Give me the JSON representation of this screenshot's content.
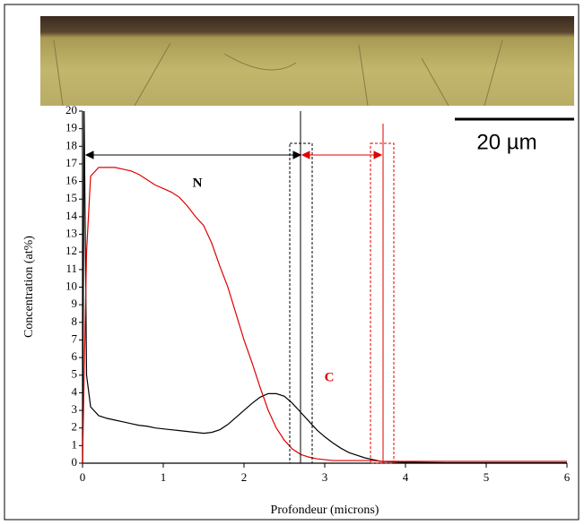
{
  "micrograph": {
    "scale_bar": "20 µm"
  },
  "chart_data": {
    "type": "line",
    "x_label": "Profondeur (microns)",
    "y_label": "Concentration (at%)",
    "xlim": [
      0,
      6
    ],
    "ylim": [
      0,
      20
    ],
    "xticks": [
      0,
      1,
      2,
      3,
      4,
      5,
      6
    ],
    "yticks": [
      0,
      1,
      2,
      3,
      4,
      5,
      6,
      7,
      8,
      9,
      10,
      11,
      12,
      13,
      14,
      15,
      16,
      17,
      18,
      19,
      20
    ],
    "x": [
      0,
      0.02,
      0.05,
      0.1,
      0.2,
      0.3,
      0.4,
      0.5,
      0.6,
      0.7,
      0.8,
      0.9,
      1.0,
      1.1,
      1.2,
      1.3,
      1.4,
      1.5,
      1.6,
      1.7,
      1.8,
      1.9,
      2.0,
      2.1,
      2.2,
      2.3,
      2.4,
      2.5,
      2.6,
      2.7,
      2.8,
      2.9,
      3.0,
      3.1,
      3.2,
      3.3,
      3.4,
      3.5,
      3.6,
      3.7,
      3.8,
      4.0,
      4.5,
      5.0,
      5.5,
      6.0
    ],
    "series": [
      {
        "name": "N",
        "color": "#000000",
        "values": [
          0,
          20,
          5,
          3.2,
          2.7,
          2.55,
          2.45,
          2.35,
          2.25,
          2.15,
          2.1,
          2.0,
          1.95,
          1.9,
          1.85,
          1.8,
          1.75,
          1.7,
          1.75,
          1.9,
          2.2,
          2.6,
          3.0,
          3.4,
          3.75,
          3.95,
          3.95,
          3.8,
          3.4,
          2.9,
          2.4,
          1.9,
          1.5,
          1.15,
          0.85,
          0.6,
          0.45,
          0.3,
          0.2,
          0.1,
          0.08,
          0.05,
          0.02,
          0.02,
          0.02,
          0.02
        ]
      },
      {
        "name": "C",
        "color": "#e00000",
        "values": [
          0,
          5,
          12,
          16.3,
          16.8,
          16.8,
          16.8,
          16.7,
          16.6,
          16.4,
          16.1,
          15.8,
          15.6,
          15.4,
          15.1,
          14.6,
          14.0,
          13.5,
          12.5,
          11.2,
          10.0,
          8.5,
          7.0,
          5.7,
          4.3,
          3.0,
          2.0,
          1.3,
          0.8,
          0.5,
          0.35,
          0.25,
          0.2,
          0.15,
          0.15,
          0.15,
          0.15,
          0.15,
          0.15,
          0.1,
          0.1,
          0.1,
          0.1,
          0.1,
          0.1,
          0.1
        ]
      }
    ]
  }
}
